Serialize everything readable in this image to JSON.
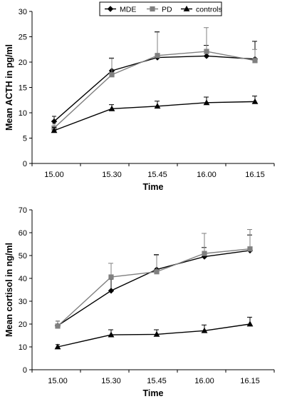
{
  "legend": [
    {
      "name": "MDE",
      "color": "#000000",
      "marker": "diamond"
    },
    {
      "name": "PD",
      "color": "#808080",
      "marker": "square"
    },
    {
      "name": "controls",
      "color": "#000000",
      "marker": "triangle"
    }
  ],
  "chart_data": [
    {
      "type": "line",
      "title": "",
      "xlabel": "Time",
      "ylabel": "Mean ACTH in pg/ml",
      "categories": [
        "15.00",
        "15.30",
        "15.45",
        "16.00",
        "16.15"
      ],
      "ylim": [
        0,
        30
      ],
      "yticks": [
        0,
        5,
        10,
        15,
        20,
        25,
        30
      ],
      "grid": false,
      "legend_position": "top-center",
      "series": [
        {
          "name": "MDE",
          "values": [
            8.3,
            18.3,
            20.9,
            21.2,
            20.6
          ],
          "errors": [
            1.0,
            2.5,
            5.1,
            2.1,
            3.5
          ],
          "color": "#000000",
          "marker": "diamond"
        },
        {
          "name": "PD",
          "values": [
            7.0,
            17.5,
            21.3,
            22.1,
            20.3
          ],
          "errors": [
            0.8,
            3.2,
            4.6,
            4.7,
            2.2
          ],
          "color": "#808080",
          "marker": "square"
        },
        {
          "name": "controls",
          "values": [
            6.5,
            10.8,
            11.3,
            12.0,
            12.2
          ],
          "errors": [
            0.6,
            0.8,
            1.0,
            1.1,
            1.1
          ],
          "color": "#000000",
          "marker": "triangle"
        }
      ]
    },
    {
      "type": "line",
      "title": "",
      "xlabel": "Time",
      "ylabel": "Mean cortisol in ng/ml",
      "categories": [
        "15.00",
        "15.30",
        "15.45",
        "16.00",
        "16.15"
      ],
      "ylim": [
        0,
        70
      ],
      "yticks": [
        0,
        10,
        20,
        30,
        40,
        50,
        60,
        70
      ],
      "grid": false,
      "series": [
        {
          "name": "MDE",
          "values": [
            19.3,
            34.6,
            43.9,
            49.5,
            52.2
          ],
          "errors": [
            2.0,
            5.0,
            6.5,
            4.0,
            6.8
          ],
          "color": "#000000",
          "marker": "diamond"
        },
        {
          "name": "PD",
          "values": [
            19.1,
            40.6,
            42.9,
            50.9,
            52.9
          ],
          "errors": [
            2.2,
            6.0,
            7.2,
            8.8,
            8.5
          ],
          "color": "#808080",
          "marker": "square"
        },
        {
          "name": "controls",
          "values": [
            10.0,
            15.3,
            15.5,
            17.1,
            20.0
          ],
          "errors": [
            1.0,
            2.2,
            2.0,
            2.5,
            3.0
          ],
          "color": "#000000",
          "marker": "triangle"
        }
      ]
    }
  ]
}
